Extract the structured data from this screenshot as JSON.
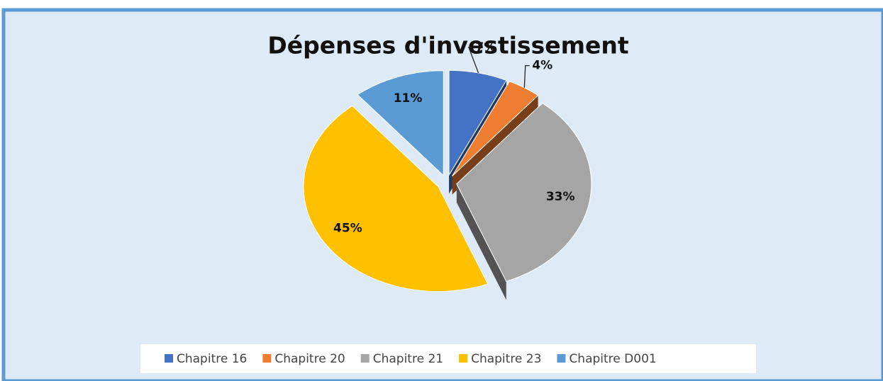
{
  "chart_data": {
    "type": "pie",
    "title": "Dépenses d'investissement",
    "categories": [
      "Chapitre 16",
      "Chapitre 20",
      "Chapitre 21",
      "Chapitre 23",
      "Chapitre D001"
    ],
    "values": [
      7,
      4,
      33,
      45,
      11
    ],
    "value_labels": [
      "7%",
      "4%",
      "33%",
      "45%",
      "11%"
    ],
    "colors": [
      "#4472c4",
      "#ed7d31",
      "#a5a5a5",
      "#ffc000",
      "#5b9bd5"
    ],
    "legend": "bottom"
  }
}
